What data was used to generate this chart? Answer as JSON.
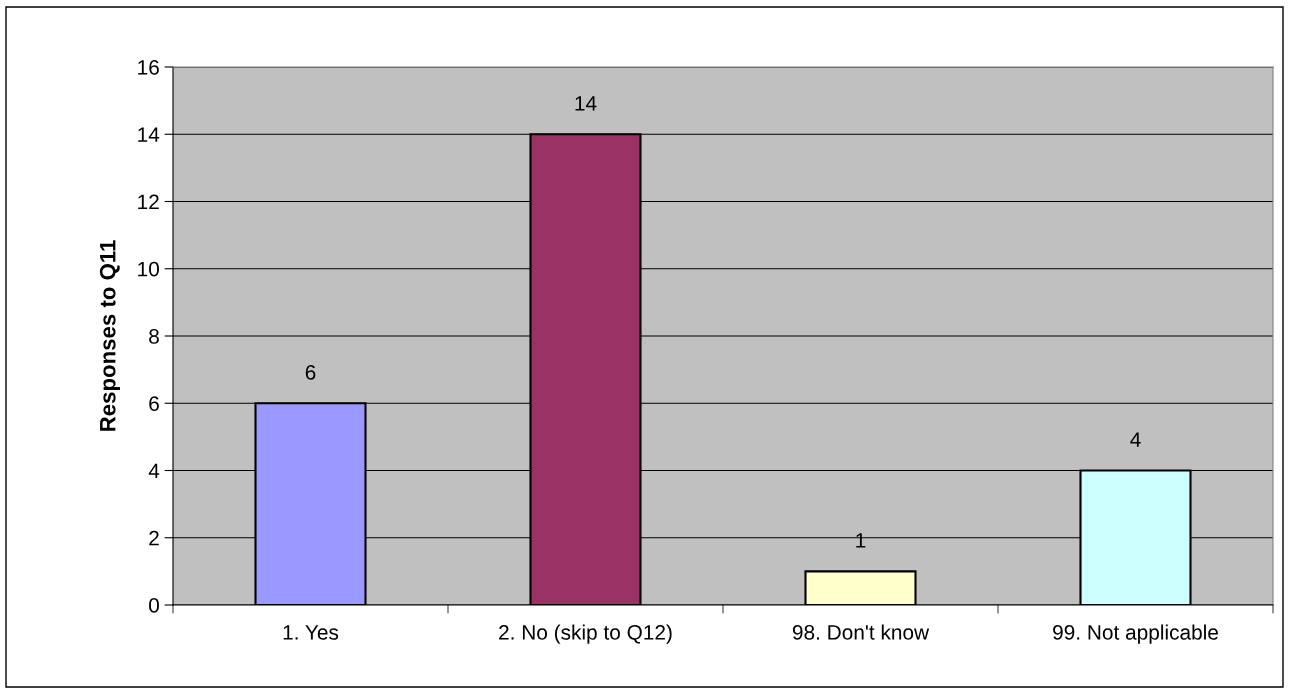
{
  "chart_data": {
    "type": "bar",
    "ylabel": "Responses to Q11",
    "categories": [
      "1. Yes",
      "2. No (skip to Q12)",
      "98. Don't know",
      "99. Not applicable"
    ],
    "values": [
      6,
      14,
      1,
      4
    ],
    "colors": [
      "#9999ff",
      "#993366",
      "#ffffcc",
      "#ccffff"
    ],
    "ylim": [
      0,
      16
    ],
    "yticks": [
      0,
      2,
      4,
      6,
      8,
      10,
      12,
      14,
      16
    ],
    "grid": "y",
    "data_labels": true,
    "legend": false
  }
}
